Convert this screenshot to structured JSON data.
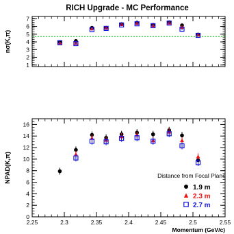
{
  "title": "RICH Upgrade - MC Performance",
  "chart_data": [
    {
      "type": "scatter",
      "ylabel": "nσ(K,π)",
      "xlim": [
        2.25,
        2.55
      ],
      "ylim": [
        0.8,
        7.3
      ],
      "y_ticks": [
        1,
        2,
        3,
        4,
        5,
        6,
        7
      ],
      "reference_line": {
        "y": 4.7,
        "color": "#00cc00",
        "style": "dashed"
      },
      "series": [
        {
          "name": "1.9 m",
          "marker": "circle",
          "color": "#000000",
          "x": [
            2.293,
            2.318,
            2.343,
            2.365,
            2.389,
            2.413,
            2.438,
            2.463,
            2.483,
            2.508
          ],
          "y": [
            3.95,
            4.12,
            5.83,
            5.83,
            6.3,
            6.5,
            6.2,
            6.55,
            6.15,
            4.95
          ]
        },
        {
          "name": "2.3 m",
          "marker": "triangle",
          "color": "#ee1111",
          "x": [
            2.293,
            2.318,
            2.343,
            2.365,
            2.389,
            2.413,
            2.438,
            2.463,
            2.483,
            2.508
          ],
          "y": [
            3.85,
            3.82,
            5.7,
            5.8,
            6.25,
            6.4,
            6.1,
            6.45,
            5.9,
            4.9
          ]
        },
        {
          "name": "2.7 m",
          "marker": "square",
          "color": "#1111dd",
          "x": [
            2.293,
            2.318,
            2.343,
            2.365,
            2.389,
            2.413,
            2.438,
            2.463,
            2.483,
            2.508
          ],
          "y": [
            3.9,
            3.78,
            5.6,
            5.75,
            6.2,
            6.35,
            6.1,
            6.45,
            5.65,
            4.85
          ]
        }
      ]
    },
    {
      "type": "scatter",
      "ylabel": "NPAD(K,π)",
      "xlabel": "Momentum (GeV/c)",
      "xlim": [
        2.25,
        2.55
      ],
      "ylim": [
        0,
        17
      ],
      "y_ticks": [
        0,
        2,
        4,
        6,
        8,
        10,
        12,
        14,
        16
      ],
      "x_ticks": [
        2.25,
        2.3,
        2.35,
        2.4,
        2.45,
        2.5,
        2.55
      ],
      "x_tick_labels": [
        "2.25",
        "2.3",
        "2.35",
        "2.4",
        "2.45",
        "2.5",
        "2.55"
      ],
      "legend_title": "Distance from Focal Plane",
      "legend_position": "bottom-right",
      "series": [
        {
          "name": "1.9 m",
          "marker": "circle",
          "color": "#000000",
          "x": [
            2.293,
            2.318,
            2.343,
            2.365,
            2.389,
            2.413,
            2.438,
            2.463,
            2.483,
            2.508
          ],
          "y": [
            7.9,
            11.6,
            14.2,
            13.7,
            14.3,
            14.6,
            14.3,
            15.0,
            14.1,
            9.8
          ]
        },
        {
          "name": "2.3 m",
          "marker": "triangle",
          "color": "#ee1111",
          "x": [
            2.293,
            2.318,
            2.343,
            2.365,
            2.389,
            2.413,
            2.438,
            2.463,
            2.483,
            2.508
          ],
          "y": [
            null,
            10.8,
            13.6,
            13.3,
            13.9,
            14.2,
            13.2,
            14.7,
            13.2,
            10.4
          ]
        },
        {
          "name": "2.7 m",
          "marker": "square",
          "color": "#1111dd",
          "x": [
            2.293,
            2.318,
            2.343,
            2.365,
            2.389,
            2.413,
            2.438,
            2.463,
            2.483,
            2.508
          ],
          "y": [
            null,
            10.2,
            13.1,
            13.0,
            13.6,
            13.7,
            13.1,
            14.4,
            12.3,
            9.4
          ]
        }
      ]
    }
  ]
}
